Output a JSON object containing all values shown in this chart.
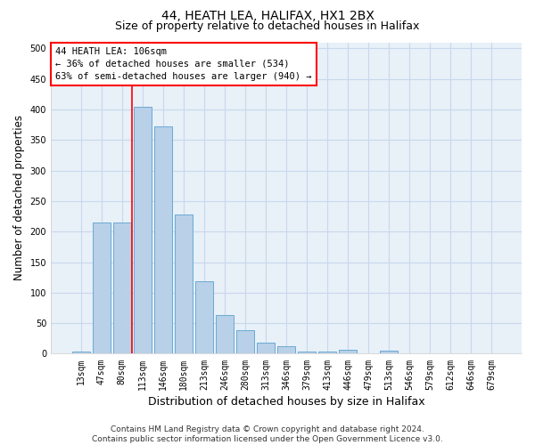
{
  "title_line1": "44, HEATH LEA, HALIFAX, HX1 2BX",
  "title_line2": "Size of property relative to detached houses in Halifax",
  "xlabel": "Distribution of detached houses by size in Halifax",
  "ylabel": "Number of detached properties",
  "categories": [
    "13sqm",
    "47sqm",
    "80sqm",
    "113sqm",
    "146sqm",
    "180sqm",
    "213sqm",
    "246sqm",
    "280sqm",
    "313sqm",
    "346sqm",
    "379sqm",
    "413sqm",
    "446sqm",
    "479sqm",
    "513sqm",
    "546sqm",
    "579sqm",
    "612sqm",
    "646sqm",
    "679sqm"
  ],
  "bar_heights": [
    3,
    215,
    215,
    404,
    372,
    228,
    118,
    64,
    38,
    18,
    13,
    4,
    4,
    6,
    1,
    5,
    1,
    0,
    0,
    0,
    1
  ],
  "bar_color": "#b8d0e8",
  "bar_edge_color": "#6aaad4",
  "grid_color": "#c8d8ec",
  "background_color": "#e8f0f8",
  "vline_x": 2.5,
  "vline_color": "red",
  "annotation_text": "44 HEATH LEA: 106sqm\n← 36% of detached houses are smaller (534)\n63% of semi-detached houses are larger (940) →",
  "annotation_box_color": "white",
  "annotation_box_edge_color": "red",
  "ylim": [
    0,
    510
  ],
  "yticks": [
    0,
    50,
    100,
    150,
    200,
    250,
    300,
    350,
    400,
    450,
    500
  ],
  "footer": "Contains HM Land Registry data © Crown copyright and database right 2024.\nContains public sector information licensed under the Open Government Licence v3.0.",
  "title_fontsize": 10,
  "subtitle_fontsize": 9,
  "tick_fontsize": 7,
  "ylabel_fontsize": 8.5,
  "xlabel_fontsize": 9,
  "footer_fontsize": 6.5
}
